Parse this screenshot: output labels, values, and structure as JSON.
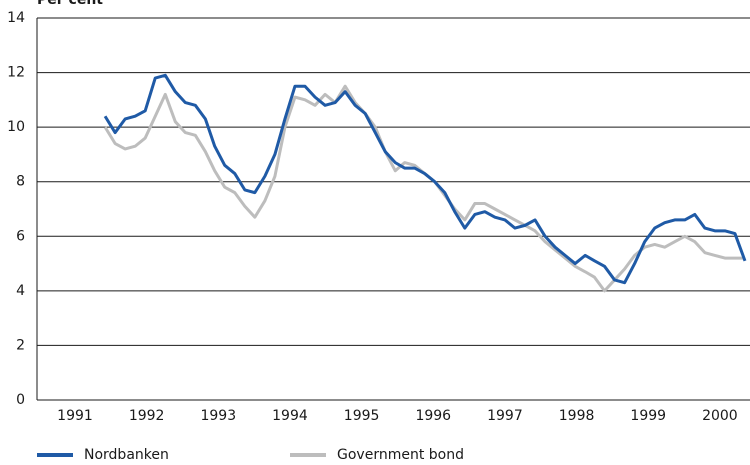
{
  "chart_data": {
    "type": "line",
    "title": "Per cent",
    "x": [
      1991.92,
      1992.06,
      1992.2,
      1992.34,
      1992.48,
      1992.62,
      1992.76,
      1992.9,
      1993.04,
      1993.18,
      1993.32,
      1993.45,
      1993.59,
      1993.73,
      1993.87,
      1994.01,
      1994.15,
      1994.29,
      1994.43,
      1994.57,
      1994.71,
      1994.85,
      1994.99,
      1995.13,
      1995.27,
      1995.41,
      1995.55,
      1995.69,
      1995.83,
      1995.97,
      1996.1,
      1996.24,
      1996.38,
      1996.52,
      1996.66,
      1996.8,
      1996.94,
      1997.08,
      1997.22,
      1997.36,
      1997.5,
      1997.64,
      1997.78,
      1997.92,
      1998.06,
      1998.2,
      1998.34,
      1998.48,
      1998.62,
      1998.75,
      1998.89,
      1999.03,
      1999.17,
      1999.31,
      1999.45,
      1999.59,
      1999.73,
      1999.87,
      2000.01,
      2000.15,
      2000.29,
      2000.43,
      2000.57,
      2000.71,
      2000.85
    ],
    "series": [
      {
        "name": "Government bond",
        "color": "#bdbdbd",
        "values": [
          10.0,
          9.4,
          9.2,
          9.3,
          9.6,
          10.4,
          11.2,
          10.2,
          9.8,
          9.7,
          9.1,
          8.4,
          7.8,
          7.6,
          7.1,
          6.7,
          7.3,
          8.2,
          10.0,
          11.1,
          11.0,
          10.8,
          11.2,
          10.9,
          11.5,
          10.9,
          10.5,
          10.0,
          9.1,
          8.4,
          8.7,
          8.6,
          8.3,
          8.0,
          7.5,
          7.0,
          6.6,
          7.2,
          7.2,
          7.0,
          6.8,
          6.6,
          6.4,
          6.2,
          5.8,
          5.5,
          5.2,
          4.9,
          4.7,
          4.5,
          4.0,
          4.4,
          4.8,
          5.3,
          5.6,
          5.7,
          5.6,
          5.8,
          6.0,
          5.8,
          5.4,
          5.3,
          5.2,
          5.2,
          5.2
        ]
      },
      {
        "name": "Nordbanken",
        "color": "#1f5aa6",
        "values": [
          10.4,
          9.8,
          10.3,
          10.4,
          10.6,
          11.8,
          11.9,
          11.3,
          10.9,
          10.8,
          10.3,
          9.3,
          8.6,
          8.3,
          7.7,
          7.6,
          8.2,
          9.0,
          10.3,
          11.5,
          11.5,
          11.1,
          10.8,
          10.9,
          11.3,
          10.8,
          10.5,
          9.8,
          9.1,
          8.7,
          8.5,
          8.5,
          8.3,
          8.0,
          7.6,
          6.9,
          6.3,
          6.8,
          6.9,
          6.7,
          6.6,
          6.3,
          6.4,
          6.6,
          6.0,
          5.6,
          5.3,
          5.0,
          5.3,
          5.1,
          4.9,
          4.4,
          4.3,
          5.0,
          5.8,
          6.3,
          6.5,
          6.6,
          6.6,
          6.8,
          6.3,
          6.2,
          6.2,
          6.1,
          5.1
        ]
      }
    ],
    "xlim": [
      1990.97,
      2000.92
    ],
    "xticks": [
      {
        "value": 1991.5,
        "label": "1991"
      },
      {
        "value": 1992.5,
        "label": "1992"
      },
      {
        "value": 1993.5,
        "label": "1993"
      },
      {
        "value": 1994.5,
        "label": "1994"
      },
      {
        "value": 1995.5,
        "label": "1995"
      },
      {
        "value": 1996.5,
        "label": "1996"
      },
      {
        "value": 1997.5,
        "label": "1997"
      },
      {
        "value": 1998.5,
        "label": "1998"
      },
      {
        "value": 1999.5,
        "label": "1999"
      },
      {
        "value": 2000.5,
        "label": "2000"
      }
    ],
    "ylim": [
      0,
      14
    ],
    "yticks": [
      0,
      2,
      4,
      6,
      8,
      10,
      12,
      14
    ],
    "grid": true
  }
}
